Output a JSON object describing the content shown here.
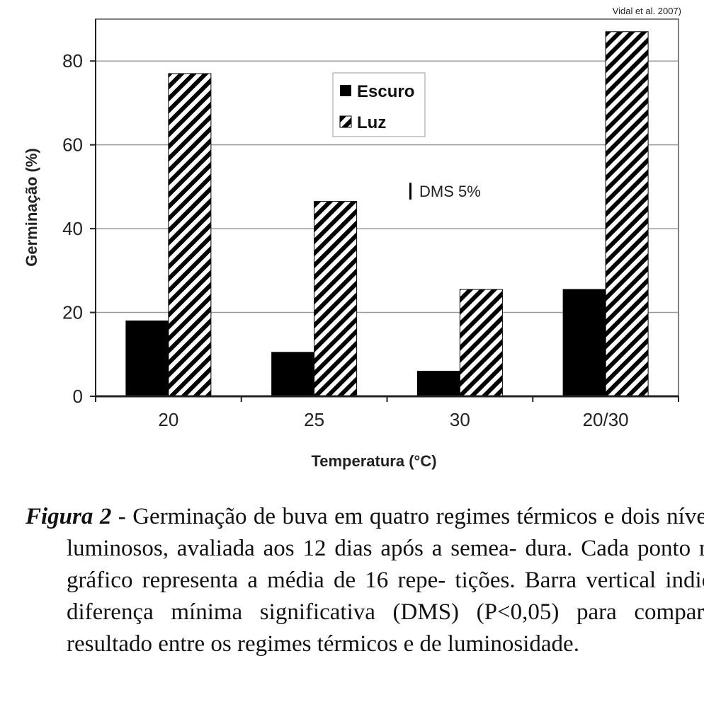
{
  "source_note": "Vidal et al. 2007)",
  "chart_data": {
    "type": "bar",
    "xlabel": "Temperatura (°C)",
    "ylabel": "Germinação (%)",
    "categories": [
      "20",
      "25",
      "30",
      "20/30"
    ],
    "series": [
      {
        "name": "Escuro",
        "values": [
          18,
          10.5,
          6,
          25.5
        ],
        "color": "#000000",
        "pattern": "solid"
      },
      {
        "name": "Luz",
        "values": [
          77,
          46.5,
          25.5,
          87
        ],
        "color": "#000000",
        "pattern": "diagonal-hatch"
      }
    ],
    "ylim": [
      0,
      90
    ],
    "yticks": [
      0,
      20,
      40,
      60,
      80
    ],
    "grid": true,
    "legend_position": "top-center",
    "annotation": {
      "text": "DMS 5%",
      "bar_height": 4
    }
  },
  "caption": {
    "label": "Figura 2",
    "separator": " - ",
    "text": "Germinação de buva em quatro regimes térmicos e dois níveis luminosos, avaliada aos 12 dias após a semea- dura. Cada ponto no gráfico representa a média de 16 repe- tições. Barra vertical indica diferença mínima significativa (DMS) (P<0,05) para comparar resultado entre os regimes térmicos e de luminosidade."
  }
}
